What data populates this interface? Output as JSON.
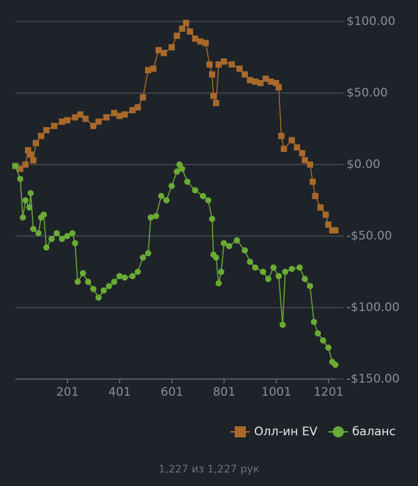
{
  "chart_data": {
    "type": "line",
    "xlim": [
      1,
      1227
    ],
    "xticks": [
      201,
      401,
      601,
      801,
      1001,
      1201
    ],
    "ylim": [
      -150,
      100
    ],
    "yticks": [
      {
        "value": 100,
        "label": "$100.00"
      },
      {
        "value": 50,
        "label": "$50.00"
      },
      {
        "value": 0,
        "label": "$0.00"
      },
      {
        "value": -50,
        "label": "-$50.00"
      },
      {
        "value": -100,
        "label": "-$100.00"
      },
      {
        "value": -150,
        "label": "-$150.00"
      }
    ],
    "grid": true,
    "legend": "bottom-right",
    "series": [
      {
        "name": "Олл-ин EV",
        "color": "#a8692a",
        "marker": "square",
        "x": [
          1,
          20,
          40,
          50,
          60,
          70,
          80,
          100,
          120,
          150,
          180,
          200,
          230,
          250,
          270,
          300,
          320,
          350,
          380,
          400,
          420,
          450,
          470,
          490,
          510,
          530,
          550,
          570,
          600,
          620,
          640,
          655,
          670,
          690,
          710,
          730,
          745,
          755,
          760,
          770,
          780,
          800,
          830,
          860,
          880,
          900,
          920,
          940,
          960,
          980,
          1000,
          1010,
          1020,
          1030,
          1060,
          1080,
          1100,
          1110,
          1130,
          1140,
          1150,
          1170,
          1190,
          1200,
          1215,
          1227
        ],
        "values": [
          -1,
          -3,
          0,
          10,
          7,
          3,
          15,
          20,
          24,
          27,
          30,
          31,
          33,
          35,
          32,
          27,
          30,
          33,
          36,
          34,
          35,
          38,
          40,
          47,
          66,
          67,
          80,
          78,
          82,
          90,
          95,
          99,
          93,
          88,
          86,
          85,
          70,
          63,
          48,
          43,
          70,
          72,
          70,
          67,
          63,
          59,
          58,
          57,
          60,
          58,
          57,
          54,
          20,
          11,
          17,
          12,
          8,
          3,
          0,
          -12,
          -22,
          -30,
          -35,
          -42,
          -46,
          -46
        ]
      },
      {
        "name": "баланс",
        "color": "#6aab33",
        "marker": "circle",
        "x": [
          1,
          20,
          30,
          40,
          55,
          60,
          70,
          90,
          100,
          110,
          120,
          140,
          160,
          180,
          200,
          220,
          230,
          240,
          260,
          280,
          300,
          320,
          340,
          360,
          380,
          400,
          420,
          450,
          470,
          490,
          510,
          520,
          540,
          560,
          580,
          600,
          620,
          630,
          640,
          660,
          690,
          720,
          740,
          755,
          760,
          770,
          780,
          790,
          800,
          820,
          850,
          880,
          900,
          920,
          950,
          970,
          990,
          1010,
          1025,
          1035,
          1060,
          1090,
          1110,
          1130,
          1145,
          1160,
          1180,
          1200,
          1215,
          1227
        ],
        "values": [
          -1,
          -10,
          -37,
          -25,
          -30,
          -20,
          -45,
          -48,
          -37,
          -35,
          -58,
          -52,
          -48,
          -52,
          -50,
          -48,
          -55,
          -82,
          -76,
          -82,
          -87,
          -93,
          -88,
          -85,
          -82,
          -78,
          -79,
          -78,
          -75,
          -65,
          -62,
          -37,
          -36,
          -22,
          -25,
          -15,
          -5,
          0,
          -3,
          -12,
          -18,
          -22,
          -25,
          -38,
          -63,
          -65,
          -83,
          -75,
          -55,
          -57,
          -53,
          -60,
          -68,
          -72,
          -75,
          -80,
          -72,
          -78,
          -112,
          -75,
          -73,
          -72,
          -80,
          -85,
          -110,
          -118,
          -123,
          -128,
          -138,
          -140
        ]
      }
    ],
    "footer": "1,227 из 1,227 рук"
  }
}
